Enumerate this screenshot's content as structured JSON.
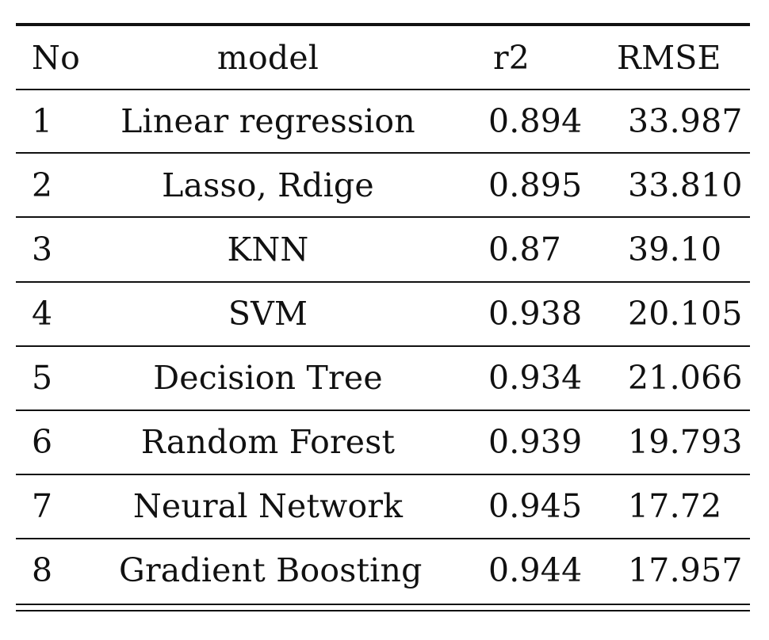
{
  "table": {
    "headers": {
      "no": "No",
      "model": "model",
      "r2": "r2",
      "rmse": "RMSE"
    },
    "rows": [
      {
        "no": "1",
        "model": "Linear regression",
        "r2": "0.894",
        "rmse": "33.987"
      },
      {
        "no": "2",
        "model": "Lasso, Rdige",
        "r2": "0.895",
        "rmse": "33.810"
      },
      {
        "no": "3",
        "model": "KNN",
        "r2": "0.87",
        "rmse": "39.10"
      },
      {
        "no": "4",
        "model": "SVM",
        "r2": "0.938",
        "rmse": "20.105"
      },
      {
        "no": "5",
        "model": "Decision Tree",
        "r2": "0.934",
        "rmse": "21.066"
      },
      {
        "no": "6",
        "model": "Random Forest",
        "r2": "0.939",
        "rmse": "19.793"
      },
      {
        "no": "7",
        "model": "Neural Network",
        "r2": "0.945",
        "rmse": "17.72"
      },
      {
        "no": "8",
        "model": "Gradient Boosting",
        "r2": "0.944",
        "rmse": "17.957"
      }
    ]
  }
}
